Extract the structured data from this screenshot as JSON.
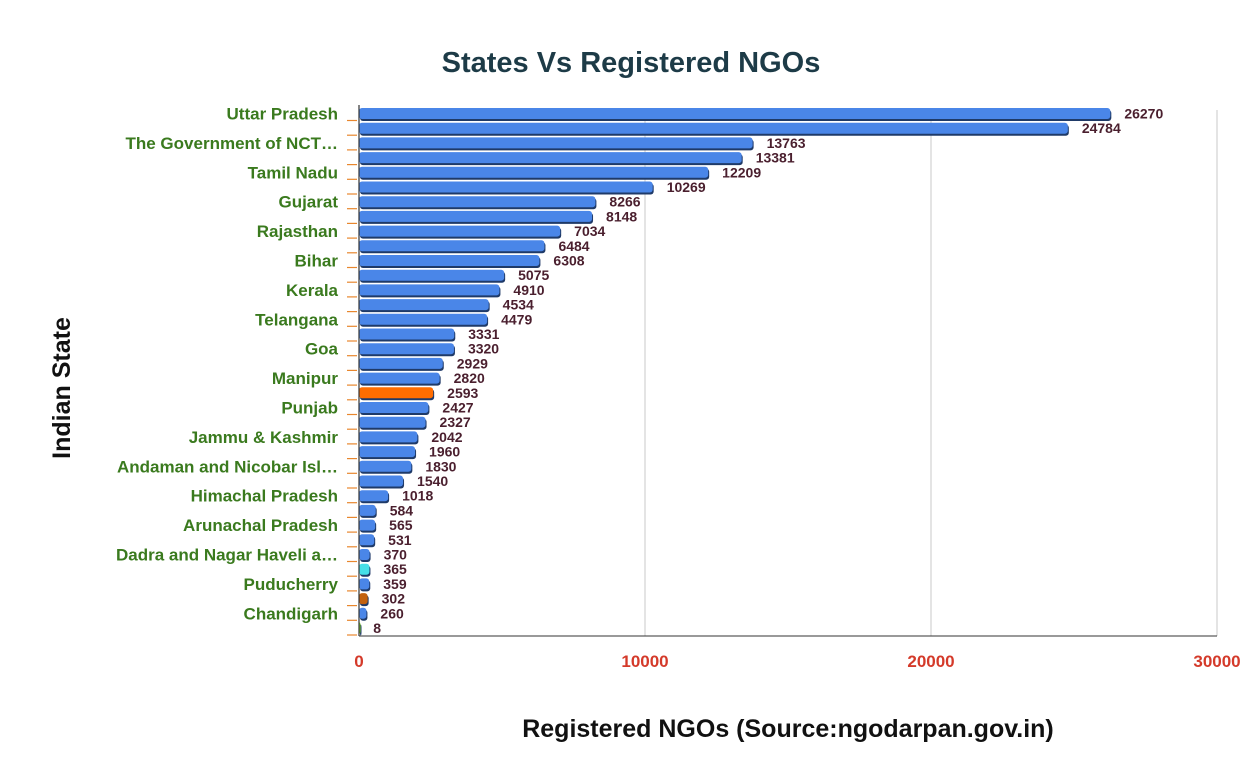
{
  "chart_data": {
    "type": "bar",
    "orientation": "horizontal",
    "title": "States Vs Registered NGOs",
    "xlabel": "Registered NGOs (Source:ngodarpan.gov.in)",
    "ylabel": "Indian State",
    "xlim": [
      0,
      30000
    ],
    "xticks": [
      0,
      10000,
      20000,
      30000
    ],
    "grid": "vertical",
    "legend": "none",
    "category_labels": [
      "Uttar Pradesh",
      "",
      "The Government of NCT…",
      "",
      "Tamil Nadu",
      "",
      "Gujarat",
      "",
      "Rajasthan",
      "",
      "Bihar",
      "",
      "Kerala",
      "",
      "Telangana",
      "",
      "Goa",
      "",
      "Manipur",
      "",
      "Punjab",
      "",
      "Jammu & Kashmir",
      "",
      "Andaman and Nicobar Isl…",
      "",
      "Himachal Pradesh",
      "",
      "Arunachal Pradesh",
      "",
      "Dadra and Nagar Haveli a…",
      "",
      "Puducherry",
      "",
      "Chandigarh",
      ""
    ],
    "values": [
      26270,
      24784,
      13763,
      13381,
      12209,
      10269,
      8266,
      8148,
      7034,
      6484,
      6308,
      5075,
      4910,
      4534,
      4479,
      3331,
      3320,
      2929,
      2820,
      2593,
      2427,
      2327,
      2042,
      1960,
      1830,
      1540,
      1018,
      584,
      565,
      531,
      370,
      365,
      359,
      302,
      260,
      8
    ],
    "bar_colors": [
      "#4a86e8",
      "#4a86e8",
      "#4a86e8",
      "#4a86e8",
      "#4a86e8",
      "#4a86e8",
      "#4a86e8",
      "#4a86e8",
      "#4a86e8",
      "#4a86e8",
      "#4a86e8",
      "#4a86e8",
      "#4a86e8",
      "#4a86e8",
      "#4a86e8",
      "#4a86e8",
      "#4a86e8",
      "#4a86e8",
      "#4a86e8",
      "#ff6d01",
      "#4a86e8",
      "#4a86e8",
      "#4a86e8",
      "#4a86e8",
      "#4a86e8",
      "#4a86e8",
      "#4a86e8",
      "#4a86e8",
      "#4a86e8",
      "#4a86e8",
      "#4a86e8",
      "#46e0e8",
      "#4a86e8",
      "#c2610f",
      "#4a86e8",
      "#7ed321"
    ]
  }
}
